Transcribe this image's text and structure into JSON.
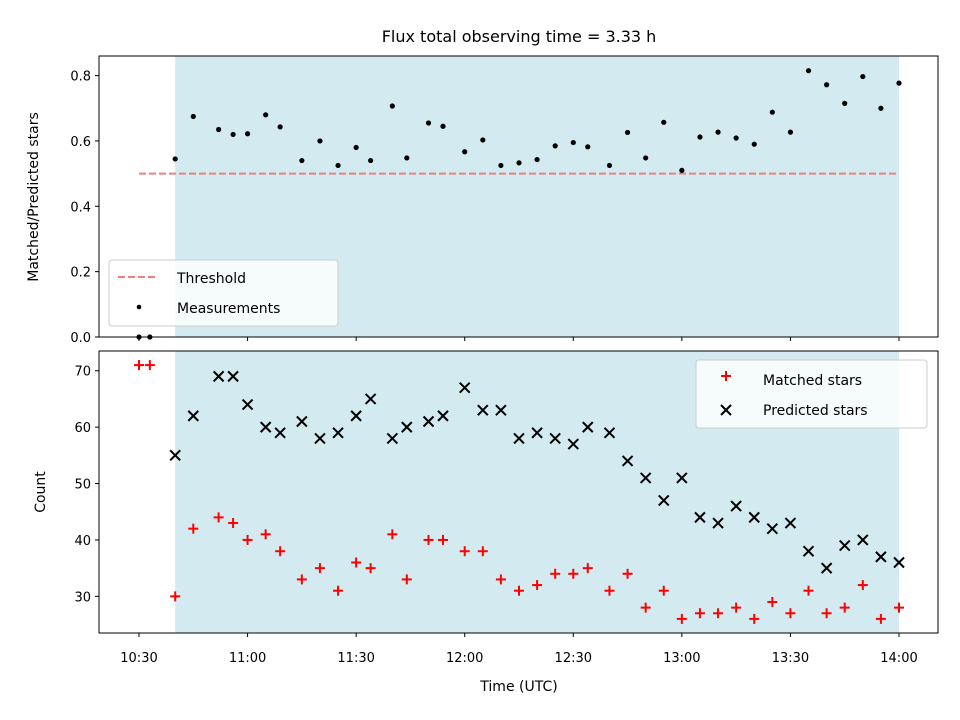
{
  "chart_data": [
    {
      "type": "scatter",
      "title": "Flux total observing time = 3.33 h",
      "xlabel": "",
      "ylabel": "Matched/Predicted stars",
      "ylim": [
        0,
        0.86
      ],
      "yticks": [
        "0.0",
        "0.2",
        "0.4",
        "0.6",
        "0.8"
      ],
      "threshold": {
        "name": "Threshold",
        "value": 0.5,
        "x_range": [
          "10:30",
          "14:00"
        ],
        "color": "#f08080"
      },
      "shaded_region": {
        "x_range": [
          "10:40",
          "14:00"
        ],
        "color": "#d3eaf0"
      },
      "legend_position": "lower-left",
      "series": [
        {
          "name": "Measurements",
          "color": "#000000",
          "x": [
            "10:30",
            "10:33",
            "10:40",
            "10:45",
            "10:52",
            "10:56",
            "11:00",
            "11:05",
            "11:09",
            "11:15",
            "11:20",
            "11:25",
            "11:30",
            "11:34",
            "11:40",
            "11:44",
            "11:50",
            "11:54",
            "12:00",
            "12:05",
            "12:10",
            "12:15",
            "12:20",
            "12:25",
            "12:30",
            "12:34",
            "12:40",
            "12:45",
            "12:50",
            "12:55",
            "13:00",
            "13:05",
            "13:10",
            "13:15",
            "13:20",
            "13:25",
            "13:30",
            "13:35",
            "13:40",
            "13:45",
            "13:50",
            "13:55",
            "14:00"
          ],
          "y": [
            0.0,
            0.0,
            0.545,
            0.675,
            0.635,
            0.62,
            0.622,
            0.68,
            0.643,
            0.54,
            0.6,
            0.525,
            0.58,
            0.54,
            0.707,
            0.548,
            0.655,
            0.645,
            0.567,
            0.603,
            0.525,
            0.533,
            0.543,
            0.585,
            0.595,
            0.582,
            0.525,
            0.626,
            0.548,
            0.657,
            0.51,
            0.612,
            0.627,
            0.609,
            0.59,
            0.688,
            0.627,
            0.815,
            0.772,
            0.715,
            0.797,
            0.7,
            0.777
          ]
        }
      ]
    },
    {
      "type": "scatter",
      "title": "",
      "xlabel": "Time (UTC)",
      "ylabel": "Count",
      "ylim": [
        23.5,
        73.5
      ],
      "yticks": [
        "30",
        "40",
        "50",
        "60",
        "70"
      ],
      "xticks": [
        "10:30",
        "11:00",
        "11:30",
        "12:00",
        "12:30",
        "13:00",
        "13:30",
        "14:00"
      ],
      "shaded_region": {
        "x_range": [
          "10:40",
          "14:00"
        ],
        "color": "#d3eaf0"
      },
      "legend_position": "top-right",
      "series": [
        {
          "name": "Matched stars",
          "marker": "+",
          "color": "#ff0000",
          "x": [
            "10:30",
            "10:33",
            "10:40",
            "10:45",
            "10:52",
            "10:56",
            "11:00",
            "11:05",
            "11:09",
            "11:15",
            "11:20",
            "11:25",
            "11:30",
            "11:34",
            "11:40",
            "11:44",
            "11:50",
            "11:54",
            "12:00",
            "12:05",
            "12:10",
            "12:15",
            "12:20",
            "12:25",
            "12:30",
            "12:34",
            "12:40",
            "12:45",
            "12:50",
            "12:55",
            "13:00",
            "13:05",
            "13:10",
            "13:15",
            "13:20",
            "13:25",
            "13:30",
            "13:35",
            "13:40",
            "13:45",
            "13:50",
            "13:55",
            "14:00"
          ],
          "y": [
            71,
            71,
            30,
            42,
            44,
            43,
            40,
            41,
            38,
            33,
            35,
            31,
            36,
            35,
            41,
            33,
            40,
            40,
            38,
            38,
            33,
            31,
            32,
            34,
            34,
            35,
            31,
            34,
            28,
            31,
            26,
            27,
            27,
            28,
            26,
            29,
            27,
            31,
            27,
            28,
            32,
            26,
            28
          ]
        },
        {
          "name": "Predicted stars",
          "marker": "x",
          "color": "#000000",
          "x": [
            "10:40",
            "10:45",
            "10:52",
            "10:56",
            "11:00",
            "11:05",
            "11:09",
            "11:15",
            "11:20",
            "11:25",
            "11:30",
            "11:34",
            "11:40",
            "11:44",
            "11:50",
            "11:54",
            "12:00",
            "12:05",
            "12:10",
            "12:15",
            "12:20",
            "12:25",
            "12:30",
            "12:34",
            "12:40",
            "12:45",
            "12:50",
            "12:55",
            "13:00",
            "13:05",
            "13:10",
            "13:15",
            "13:20",
            "13:25",
            "13:30",
            "13:35",
            "13:40",
            "13:45",
            "13:50",
            "13:55",
            "14:00"
          ],
          "y": [
            55,
            62,
            69,
            69,
            64,
            60,
            59,
            61,
            58,
            59,
            62,
            65,
            58,
            60,
            61,
            62,
            67,
            63,
            63,
            58,
            59,
            58,
            57,
            60,
            59,
            54,
            51,
            47,
            51,
            44,
            43,
            46,
            44,
            42,
            43,
            38,
            35,
            39,
            40,
            37,
            36
          ]
        }
      ]
    }
  ]
}
